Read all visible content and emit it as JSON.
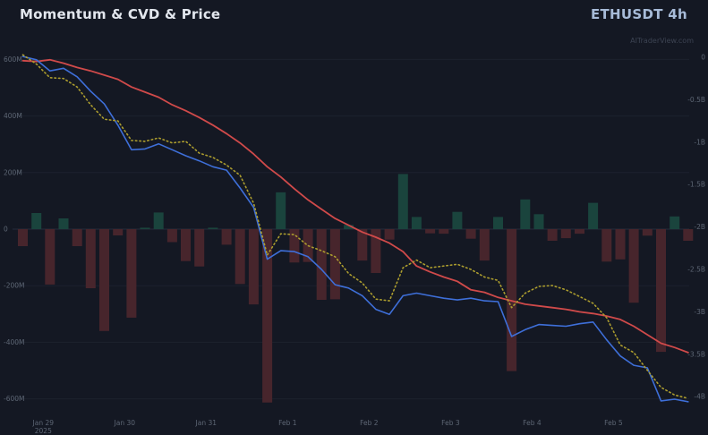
{
  "header": {
    "title": "Momentum & CVD & Price",
    "symbol": "ETHUSDT 4h",
    "watermark": "AITraderView.com"
  },
  "colors": {
    "background": "#141823",
    "title_text": "#e2e6ed",
    "symbol_text": "#a7bbd8",
    "watermark_text": "#3c4352",
    "grid_line": "#1c212e",
    "zero_line": "#262c3b",
    "axis_text": "#5d6674",
    "price_line": "#d04a4a",
    "cvd_line": "#3e6fd9",
    "momentum_cvd_line": "#ac9d2e",
    "bar_positive": "#1a443d",
    "bar_negative": "#47252c"
  },
  "chart_data": {
    "type": "mixed",
    "title": "Momentum & CVD & Price",
    "symbol": "ETHUSDT 4h",
    "timeframe": "4h",
    "grid": true,
    "legend": false,
    "x_ticks": [
      {
        "label": "Jan 29",
        "sublabel": "2025",
        "index": 1.5
      },
      {
        "label": "Jan 30",
        "index": 7.5
      },
      {
        "label": "Jan 31",
        "index": 13.5
      },
      {
        "label": "Feb 1",
        "index": 19.5
      },
      {
        "label": "Feb 2",
        "index": 25.5
      },
      {
        "label": "Feb 3",
        "index": 31.5
      },
      {
        "label": "Feb 4",
        "index": 37.5
      },
      {
        "label": "Feb 5",
        "index": 43.5
      }
    ],
    "left_axis": {
      "unit": "millions",
      "applies_to": "momentum_histogram",
      "ticks": [
        {
          "label": "600M",
          "value": 600
        },
        {
          "label": "400M",
          "value": 400
        },
        {
          "label": "200M",
          "value": 200
        },
        {
          "label": "0",
          "value": 0
        },
        {
          "label": "-200M",
          "value": -200
        },
        {
          "label": "-400M",
          "value": -400
        },
        {
          "label": "-600M",
          "value": -600
        }
      ]
    },
    "right_axis": {
      "unit": "billions",
      "applies_to": "lines",
      "ticks": [
        {
          "label": "0",
          "value": 0
        },
        {
          "label": "-0.5B",
          "value": -0.5
        },
        {
          "label": "-1B",
          "value": -1
        },
        {
          "label": "-1.5B",
          "value": -1.5
        },
        {
          "label": "-2B",
          "value": -2
        },
        {
          "label": "-2.5B",
          "value": -2.5
        },
        {
          "label": "-3B",
          "value": -3
        },
        {
          "label": "-3.5B",
          "value": -3.5
        },
        {
          "label": "-4B",
          "value": -4
        }
      ]
    },
    "series": [
      {
        "name": "momentum_histogram",
        "type": "bar",
        "axis": "left",
        "values_unit": "M",
        "values": [
          -60,
          57,
          -196,
          38,
          -60,
          -209,
          -360,
          -22,
          -313,
          5,
          59,
          -46,
          -113,
          -132,
          5,
          -55,
          -194,
          -266,
          -613,
          130,
          -118,
          -116,
          -250,
          -248,
          15,
          -111,
          -155,
          -37,
          195,
          43,
          -15,
          -16,
          61,
          -34,
          -111,
          43,
          -502,
          105,
          53,
          -41,
          -32,
          -16,
          93,
          -115,
          -107,
          -260,
          -23,
          -434,
          45,
          -41
        ]
      },
      {
        "name": "price",
        "type": "line",
        "style": "solid",
        "axis": "right",
        "values_unit": "B",
        "values": [
          -0.04,
          -0.05,
          -0.03,
          -0.07,
          -0.12,
          -0.16,
          -0.21,
          -0.26,
          -0.35,
          -0.41,
          -0.47,
          -0.56,
          -0.63,
          -0.71,
          -0.8,
          -0.9,
          -1.01,
          -1.14,
          -1.29,
          -1.41,
          -1.55,
          -1.68,
          -1.79,
          -1.9,
          -1.98,
          -2.06,
          -2.12,
          -2.19,
          -2.29,
          -2.46,
          -2.53,
          -2.59,
          -2.64,
          -2.74,
          -2.77,
          -2.83,
          -2.87,
          -2.91,
          -2.93,
          -2.95,
          -2.97,
          -3.0,
          -3.02,
          -3.05,
          -3.09,
          -3.17,
          -3.27,
          -3.37,
          -3.42,
          -3.48
        ]
      },
      {
        "name": "cvd",
        "type": "line",
        "style": "solid",
        "axis": "right",
        "values_unit": "B",
        "values": [
          0.01,
          -0.03,
          -0.16,
          -0.13,
          -0.23,
          -0.4,
          -0.55,
          -0.8,
          -1.09,
          -1.08,
          -1.02,
          -1.09,
          -1.16,
          -1.22,
          -1.29,
          -1.33,
          -1.54,
          -1.77,
          -2.38,
          -2.28,
          -2.29,
          -2.35,
          -2.5,
          -2.68,
          -2.72,
          -2.81,
          -2.97,
          -3.03,
          -2.81,
          -2.78,
          -2.81,
          -2.84,
          -2.86,
          -2.84,
          -2.87,
          -2.88,
          -3.29,
          -3.21,
          -3.15,
          -3.16,
          -3.17,
          -3.14,
          -3.12,
          -3.33,
          -3.52,
          -3.63,
          -3.66,
          -4.05,
          -4.03,
          -4.06
        ]
      },
      {
        "name": "momentum_cvd",
        "type": "line",
        "style": "dotted",
        "axis": "right",
        "values_unit": "B",
        "values": [
          0.03,
          -0.08,
          -0.24,
          -0.25,
          -0.35,
          -0.56,
          -0.73,
          -0.75,
          -0.98,
          -0.99,
          -0.95,
          -1.01,
          -0.99,
          -1.13,
          -1.18,
          -1.27,
          -1.39,
          -1.72,
          -2.33,
          -2.08,
          -2.09,
          -2.22,
          -2.28,
          -2.35,
          -2.55,
          -2.66,
          -2.85,
          -2.87,
          -2.48,
          -2.39,
          -2.48,
          -2.46,
          -2.44,
          -2.5,
          -2.59,
          -2.63,
          -2.95,
          -2.78,
          -2.7,
          -2.69,
          -2.74,
          -2.82,
          -2.9,
          -3.07,
          -3.39,
          -3.48,
          -3.69,
          -3.89,
          -3.98,
          -4.02
        ]
      }
    ]
  }
}
